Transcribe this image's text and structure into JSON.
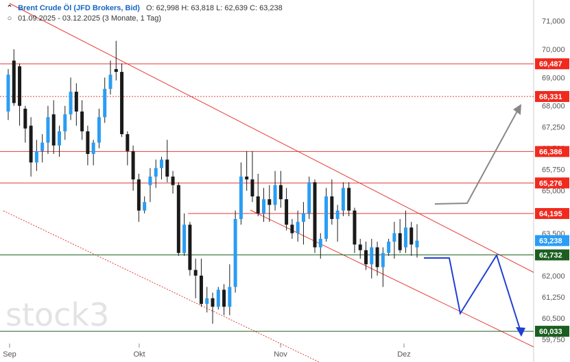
{
  "header": {
    "title": "Brent Crude Öl (JFD Brokers, Bid)",
    "ohlc": "O: 62,998  H: 63,818  L: 62,639  C: 63,238",
    "range": "01.09.2025 - 03.12.2025  (3 Monate, 1 Tag)",
    "collapse_icon": "chevron-up-icon",
    "range_icon": "circle-settings-icon"
  },
  "logo": {
    "text": "stock3"
  },
  "colors": {
    "bull": "#2a9df4",
    "bear": "#1a1a1a",
    "resistance": "#e53935",
    "support_green": "#1b5e20",
    "projection": "#1f3fd4",
    "projection_up": "#888888",
    "price_label": "#2a9df4"
  },
  "chart_data": {
    "type": "candlestick",
    "x_labels": [
      "Sep",
      "Okt",
      "Nov",
      "Dez"
    ],
    "y_ticks": [
      "71,000",
      "70,000",
      "69,000",
      "68,000",
      "67,250",
      "66,500",
      "65,750",
      "65,000",
      "64,250",
      "63,500",
      "62,750",
      "62,000",
      "61,250",
      "60,500",
      "59,750"
    ],
    "ylim": [
      59.6,
      71.5
    ],
    "horizontal_levels": [
      {
        "value": 69.487,
        "label": "69,487",
        "style": "solid",
        "color": "#e53935"
      },
      {
        "value": 68.331,
        "label": "68,331",
        "style": "dotted",
        "color": "#e53935"
      },
      {
        "value": 66.386,
        "label": "66,386",
        "style": "solid",
        "color": "#e53935"
      },
      {
        "value": 65.276,
        "label": "65,276",
        "style": "solid",
        "color": "#e53935"
      },
      {
        "value": 64.195,
        "label": "64,195",
        "style": "solid",
        "color": "#e53935"
      },
      {
        "value": 62.732,
        "label": "62,732",
        "style": "solid",
        "color": "#1b5e20"
      },
      {
        "value": 60.033,
        "label": "60,033",
        "style": "solid",
        "color": "#1b5e20"
      }
    ],
    "current_price": {
      "value": 63.238,
      "label": "63,238"
    },
    "candles": [
      {
        "o": 67.8,
        "h": 69.3,
        "l": 67.5,
        "c": 69.1
      },
      {
        "o": 69.6,
        "h": 70.0,
        "l": 68.0,
        "c": 68.1
      },
      {
        "o": 69.4,
        "h": 69.5,
        "l": 67.3,
        "c": 68.0
      },
      {
        "o": 67.9,
        "h": 68.0,
        "l": 66.7,
        "c": 67.2
      },
      {
        "o": 67.3,
        "h": 67.6,
        "l": 65.5,
        "c": 66.0
      },
      {
        "o": 66.0,
        "h": 66.8,
        "l": 65.7,
        "c": 66.4
      },
      {
        "o": 66.4,
        "h": 67.0,
        "l": 66.0,
        "c": 66.7
      },
      {
        "o": 66.7,
        "h": 68.0,
        "l": 66.3,
        "c": 67.6
      },
      {
        "o": 67.7,
        "h": 68.2,
        "l": 66.3,
        "c": 66.6
      },
      {
        "o": 66.6,
        "h": 67.3,
        "l": 66.2,
        "c": 67.1
      },
      {
        "o": 67.1,
        "h": 68.0,
        "l": 66.8,
        "c": 67.7
      },
      {
        "o": 67.7,
        "h": 69.0,
        "l": 67.5,
        "c": 68.5
      },
      {
        "o": 68.5,
        "h": 68.8,
        "l": 67.3,
        "c": 67.8
      },
      {
        "o": 67.8,
        "h": 68.2,
        "l": 66.8,
        "c": 67.1
      },
      {
        "o": 67.1,
        "h": 67.3,
        "l": 65.9,
        "c": 66.3
      },
      {
        "o": 66.3,
        "h": 66.8,
        "l": 65.9,
        "c": 66.7
      },
      {
        "o": 66.7,
        "h": 67.9,
        "l": 66.5,
        "c": 67.6
      },
      {
        "o": 67.6,
        "h": 69.0,
        "l": 67.4,
        "c": 68.6
      },
      {
        "o": 68.6,
        "h": 69.6,
        "l": 68.4,
        "c": 69.1
      },
      {
        "o": 69.3,
        "h": 70.3,
        "l": 68.9,
        "c": 69.2
      },
      {
        "o": 69.2,
        "h": 69.5,
        "l": 66.9,
        "c": 67.0
      },
      {
        "o": 67.0,
        "h": 67.1,
        "l": 65.9,
        "c": 66.4
      },
      {
        "o": 66.4,
        "h": 66.6,
        "l": 65.0,
        "c": 65.4
      },
      {
        "o": 65.4,
        "h": 65.6,
        "l": 63.9,
        "c": 64.3
      },
      {
        "o": 64.3,
        "h": 64.8,
        "l": 64.2,
        "c": 64.6
      },
      {
        "o": 65.2,
        "h": 65.8,
        "l": 64.6,
        "c": 65.5
      },
      {
        "o": 65.5,
        "h": 66.1,
        "l": 65.1,
        "c": 65.8
      },
      {
        "o": 65.8,
        "h": 66.2,
        "l": 65.4,
        "c": 66.1
      },
      {
        "o": 66.1,
        "h": 66.8,
        "l": 65.3,
        "c": 65.5
      },
      {
        "o": 65.5,
        "h": 65.7,
        "l": 64.9,
        "c": 65.2
      },
      {
        "o": 65.2,
        "h": 65.3,
        "l": 62.7,
        "c": 62.8
      },
      {
        "o": 62.8,
        "h": 64.2,
        "l": 62.7,
        "c": 63.8
      },
      {
        "o": 63.8,
        "h": 63.9,
        "l": 62.0,
        "c": 62.2
      },
      {
        "o": 62.2,
        "h": 62.6,
        "l": 61.2,
        "c": 62.0
      },
      {
        "o": 62.0,
        "h": 62.6,
        "l": 60.9,
        "c": 61.0
      },
      {
        "o": 61.0,
        "h": 61.6,
        "l": 60.7,
        "c": 61.2
      },
      {
        "o": 61.2,
        "h": 61.4,
        "l": 60.3,
        "c": 60.9
      },
      {
        "o": 60.9,
        "h": 61.6,
        "l": 60.8,
        "c": 61.5
      },
      {
        "o": 61.5,
        "h": 61.7,
        "l": 60.6,
        "c": 60.9
      },
      {
        "o": 60.9,
        "h": 62.4,
        "l": 60.6,
        "c": 61.6
      },
      {
        "o": 61.6,
        "h": 64.3,
        "l": 61.4,
        "c": 64.0
      },
      {
        "o": 64.0,
        "h": 66.0,
        "l": 63.8,
        "c": 65.5
      },
      {
        "o": 65.5,
        "h": 66.4,
        "l": 65.0,
        "c": 65.4
      },
      {
        "o": 65.4,
        "h": 66.4,
        "l": 64.6,
        "c": 64.8
      },
      {
        "o": 64.8,
        "h": 65.6,
        "l": 64.1,
        "c": 64.2
      },
      {
        "o": 64.2,
        "h": 65.1,
        "l": 63.9,
        "c": 64.7
      },
      {
        "o": 64.7,
        "h": 65.2,
        "l": 63.9,
        "c": 64.5
      },
      {
        "o": 64.5,
        "h": 65.7,
        "l": 64.3,
        "c": 65.2
      },
      {
        "o": 65.2,
        "h": 65.7,
        "l": 64.4,
        "c": 64.7
      },
      {
        "o": 64.7,
        "h": 65.1,
        "l": 63.6,
        "c": 63.8
      },
      {
        "o": 63.8,
        "h": 64.0,
        "l": 63.3,
        "c": 63.5
      },
      {
        "o": 63.5,
        "h": 64.3,
        "l": 63.2,
        "c": 63.9
      },
      {
        "o": 63.9,
        "h": 64.6,
        "l": 63.1,
        "c": 64.2
      },
      {
        "o": 64.2,
        "h": 65.5,
        "l": 64.0,
        "c": 65.3
      },
      {
        "o": 65.3,
        "h": 65.4,
        "l": 62.8,
        "c": 63.0
      },
      {
        "o": 63.0,
        "h": 63.5,
        "l": 62.6,
        "c": 63.3
      },
      {
        "o": 63.3,
        "h": 65.1,
        "l": 63.2,
        "c": 64.8
      },
      {
        "o": 64.8,
        "h": 65.4,
        "l": 63.8,
        "c": 64.0
      },
      {
        "o": 64.0,
        "h": 64.5,
        "l": 63.2,
        "c": 64.3
      },
      {
        "o": 64.3,
        "h": 65.3,
        "l": 64.1,
        "c": 65.1
      },
      {
        "o": 65.1,
        "h": 65.3,
        "l": 64.1,
        "c": 64.3
      },
      {
        "o": 64.3,
        "h": 64.4,
        "l": 62.8,
        "c": 63.1
      },
      {
        "o": 63.1,
        "h": 63.3,
        "l": 62.6,
        "c": 62.9
      },
      {
        "o": 62.9,
        "h": 63.2,
        "l": 62.2,
        "c": 62.4
      },
      {
        "o": 62.4,
        "h": 63.3,
        "l": 61.9,
        "c": 63.0
      },
      {
        "o": 63.0,
        "h": 63.2,
        "l": 62.0,
        "c": 62.3
      },
      {
        "o": 62.3,
        "h": 63.0,
        "l": 61.6,
        "c": 62.8
      },
      {
        "o": 62.8,
        "h": 63.3,
        "l": 62.7,
        "c": 63.2
      },
      {
        "o": 63.2,
        "h": 63.9,
        "l": 62.6,
        "c": 63.5
      },
      {
        "o": 63.5,
        "h": 64.0,
        "l": 62.8,
        "c": 62.9
      },
      {
        "o": 63.0,
        "h": 64.3,
        "l": 62.8,
        "c": 63.7
      },
      {
        "o": 63.7,
        "h": 63.9,
        "l": 62.7,
        "c": 63.1
      },
      {
        "o": 62.998,
        "h": 63.818,
        "l": 62.639,
        "c": 63.238
      }
    ]
  }
}
